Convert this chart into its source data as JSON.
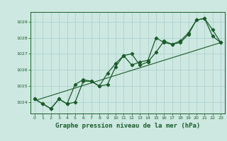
{
  "title": "",
  "xlabel": "Graphe pression niveau de la mer (hPa)",
  "background_color": "#cce8e0",
  "plot_bg_color": "#cce8e0",
  "grid_color": "#aacccc",
  "line_color": "#1a5c2a",
  "marker_color": "#1a5c2a",
  "text_color": "#1a5c2a",
  "xlim": [
    -0.5,
    23.5
  ],
  "ylim": [
    1023.3,
    1029.6
  ],
  "yticks": [
    1024,
    1025,
    1026,
    1027,
    1028,
    1029
  ],
  "xticks": [
    0,
    1,
    2,
    3,
    4,
    5,
    6,
    7,
    8,
    9,
    10,
    11,
    12,
    13,
    14,
    15,
    16,
    17,
    18,
    19,
    20,
    21,
    22,
    23
  ],
  "series1_x": [
    0,
    1,
    2,
    3,
    4,
    5,
    6,
    7,
    8,
    9,
    10,
    11,
    12,
    13,
    14,
    15,
    16,
    17,
    18,
    19,
    20,
    21,
    22,
    23
  ],
  "series1_y": [
    1024.2,
    1023.9,
    1023.6,
    1024.2,
    1023.9,
    1024.0,
    1025.3,
    1025.3,
    1025.0,
    1025.8,
    1026.4,
    1026.9,
    1027.0,
    1026.3,
    1026.5,
    1027.1,
    1027.8,
    1027.6,
    1027.7,
    1028.2,
    1029.1,
    1029.2,
    1028.1,
    1027.7
  ],
  "series2_x": [
    0,
    1,
    2,
    3,
    4,
    5,
    6,
    7,
    8,
    9,
    10,
    11,
    12,
    13,
    14,
    15,
    16,
    17,
    18,
    19,
    20,
    21,
    22,
    23
  ],
  "series2_y": [
    1024.2,
    1023.9,
    1023.6,
    1024.2,
    1023.9,
    1025.1,
    1025.4,
    1025.3,
    1025.0,
    1025.1,
    1026.2,
    1026.9,
    1026.3,
    1026.5,
    1026.6,
    1028.0,
    1027.7,
    1027.6,
    1027.8,
    1028.3,
    1029.1,
    1029.2,
    1028.5,
    1027.7
  ],
  "trend_x": [
    0,
    23
  ],
  "trend_y": [
    1024.1,
    1027.7
  ]
}
